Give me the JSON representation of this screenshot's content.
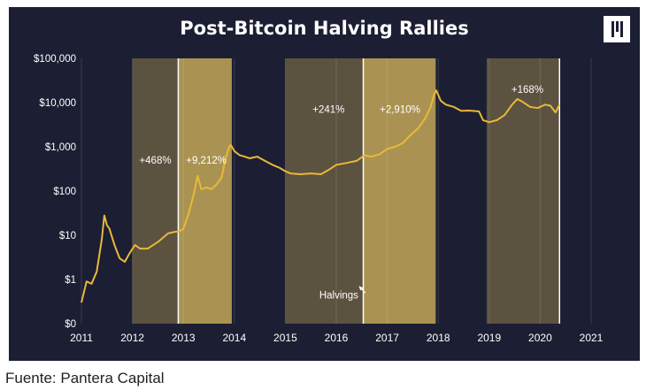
{
  "source_text": "Fuente: Pantera Capital",
  "logo_icon": "pantera-logo-icon",
  "colors": {
    "panel_bg": "#1c1e33",
    "price_line": "#e9b83a",
    "highlight_band": "#e2c15e",
    "grid": "#ffffff",
    "text": "#ffffff"
  },
  "chart_data": {
    "type": "line",
    "title": "Post-Bitcoin Halving Rallies",
    "xlabel": "",
    "ylabel": "",
    "y_scale": "log",
    "xlim": [
      2011,
      2021
    ],
    "ylim": [
      0.1,
      100000
    ],
    "y_ticks": [
      {
        "value": 0.1,
        "label": "$0"
      },
      {
        "value": 1,
        "label": "$1"
      },
      {
        "value": 10,
        "label": "$10"
      },
      {
        "value": 100,
        "label": "$100"
      },
      {
        "value": 1000,
        "label": "$1,000"
      },
      {
        "value": 10000,
        "label": "$10,000"
      },
      {
        "value": 100000,
        "label": "$100,000"
      }
    ],
    "x_ticks": [
      "2011",
      "2012",
      "2013",
      "2014",
      "2015",
      "2016",
      "2017",
      "2018",
      "2019",
      "2020",
      "2021"
    ],
    "grid": "vertical",
    "highlights": [
      {
        "start": 2012.0,
        "end": 2012.9,
        "label": "+468%",
        "label_x": 2012.45,
        "label_y": 500
      },
      {
        "start": 2012.9,
        "end": 2013.95,
        "label": "+9,212%",
        "label_x": 2013.45,
        "label_y": 500
      },
      {
        "start": 2015.0,
        "end": 2016.53,
        "label": "+241%",
        "label_x": 2015.85,
        "label_y": 7000
      },
      {
        "start": 2016.53,
        "end": 2017.95,
        "label": "+2,910%",
        "label_x": 2017.25,
        "label_y": 7000
      },
      {
        "start": 2018.95,
        "end": 2020.38,
        "label": "+168%",
        "label_x": 2019.75,
        "label_y": 20000
      }
    ],
    "halvings": [
      2012.9,
      2016.53,
      2020.38
    ],
    "annotations": [
      {
        "text": "Halvings",
        "x": 2016.05,
        "y": 0.45,
        "arrow_to": [
          2016.45,
          0.7
        ]
      }
    ],
    "series": [
      {
        "x": [
          2011.0,
          2011.1,
          2011.2,
          2011.3,
          2011.4,
          2011.45,
          2011.5,
          2011.55,
          2011.65,
          2011.75,
          2011.85,
          2011.95,
          2012.05,
          2012.15,
          2012.3,
          2012.5,
          2012.7,
          2012.85,
          2012.9,
          2013.0,
          2013.1,
          2013.2,
          2013.28,
          2013.35,
          2013.45,
          2013.55,
          2013.65,
          2013.75,
          2013.82,
          2013.9,
          2013.93,
          2014.0,
          2014.1,
          2014.2,
          2014.3,
          2014.45,
          2014.6,
          2014.75,
          2014.9,
          2015.0,
          2015.1,
          2015.3,
          2015.5,
          2015.7,
          2015.85,
          2016.0,
          2016.2,
          2016.4,
          2016.55,
          2016.7,
          2016.85,
          2017.0,
          2017.15,
          2017.3,
          2017.45,
          2017.6,
          2017.75,
          2017.85,
          2017.92,
          2017.96,
          2018.05,
          2018.15,
          2018.3,
          2018.45,
          2018.6,
          2018.8,
          2018.88,
          2019.0,
          2019.15,
          2019.3,
          2019.45,
          2019.55,
          2019.65,
          2019.8,
          2019.95,
          2020.1,
          2020.2,
          2020.3,
          2020.38
        ],
        "y": [
          0.3,
          0.9,
          0.8,
          1.5,
          8,
          28,
          17,
          14,
          6,
          3,
          2.5,
          4,
          6,
          5,
          5,
          7,
          11,
          12,
          12,
          14,
          30,
          80,
          220,
          110,
          120,
          110,
          140,
          200,
          500,
          1000,
          1100,
          800,
          650,
          600,
          550,
          600,
          480,
          390,
          330,
          280,
          250,
          240,
          250,
          240,
          300,
          390,
          430,
          480,
          640,
          600,
          680,
          900,
          1000,
          1200,
          1800,
          2600,
          4500,
          8000,
          15000,
          19000,
          11000,
          9000,
          8000,
          6500,
          6600,
          6300,
          4000,
          3600,
          4000,
          5200,
          9000,
          12000,
          10500,
          8000,
          7500,
          9000,
          8500,
          6000,
          9000
        ]
      }
    ]
  }
}
